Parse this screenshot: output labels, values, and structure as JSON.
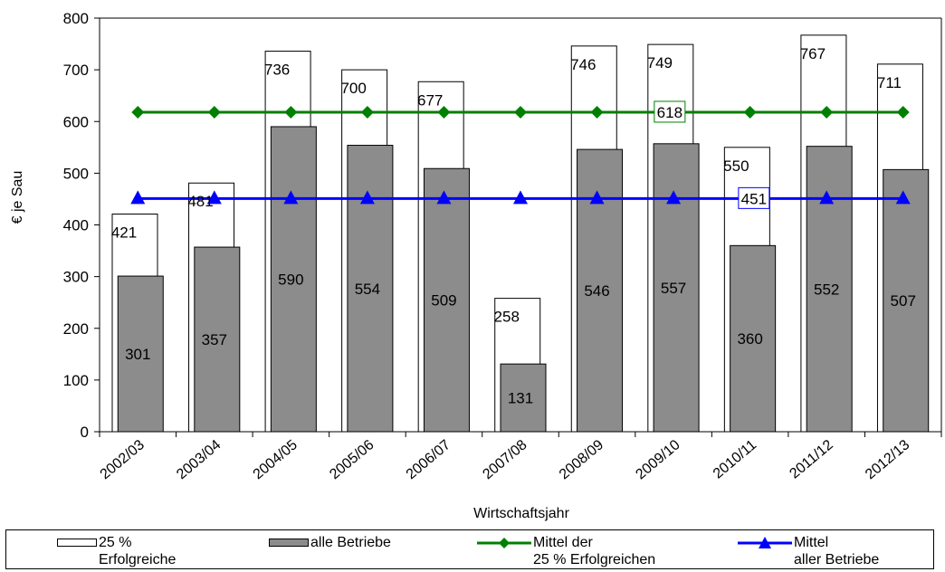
{
  "chart_data": {
    "type": "bar",
    "categories": [
      "2002/03",
      "2003/04",
      "2004/05",
      "2005/06",
      "2006/07",
      "2007/08",
      "2008/09",
      "2009/10",
      "2010/11",
      "2011/12",
      "2012/13"
    ],
    "series": [
      {
        "name": "25 %\nErfolgreiche",
        "kind": "bar",
        "values": [
          421,
          481,
          736,
          700,
          677,
          258,
          746,
          749,
          550,
          767,
          711
        ],
        "color": "#ffffff"
      },
      {
        "name": "alle Betriebe",
        "kind": "bar",
        "values": [
          301,
          357,
          590,
          554,
          509,
          131,
          546,
          557,
          360,
          552,
          507
        ],
        "color": "#8c8c8c"
      },
      {
        "name": "Mittel der\n25 % Erfolgreichen",
        "kind": "line",
        "values": [
          618,
          618,
          618,
          618,
          618,
          618,
          618,
          618,
          618,
          618,
          618
        ],
        "color": "#008000",
        "marker": "diamond",
        "label": "618"
      },
      {
        "name": "Mittel\naller Betriebe",
        "kind": "line",
        "values": [
          451,
          451,
          451,
          451,
          451,
          451,
          451,
          451,
          451,
          451,
          451
        ],
        "color": "#0000ff",
        "marker": "triangle",
        "label": "451"
      }
    ],
    "xlabel": "Wirtschaftsjahr",
    "ylabel": "€ je Sau",
    "ylim": [
      0,
      800
    ],
    "yticks": [
      0,
      100,
      200,
      300,
      400,
      500,
      600,
      700,
      800
    ],
    "grid": false,
    "legend_position": "bottom"
  }
}
